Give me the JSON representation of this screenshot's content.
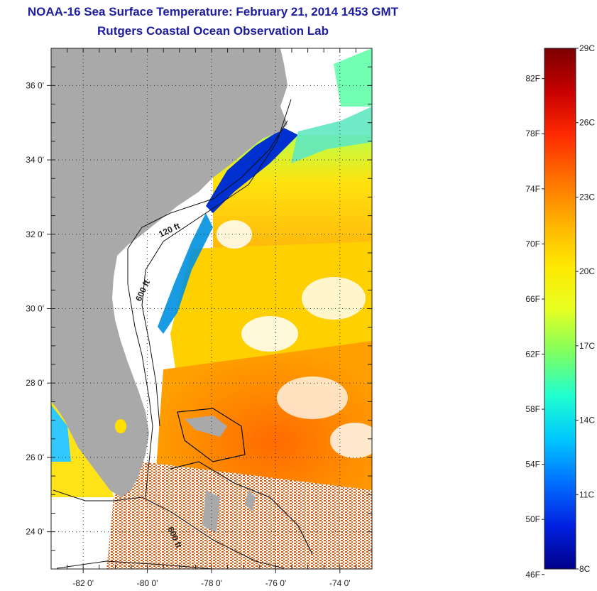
{
  "header": {
    "title": "NOAA-16 Sea Surface Temperature:  February 21, 2014 1453 GMT",
    "subtitle": "Rutgers Coastal Ocean Observation Lab"
  },
  "map": {
    "lon_range": [
      -83,
      -73
    ],
    "lat_range": [
      23,
      37
    ],
    "lon_ticks": [
      {
        "value": -82,
        "label": "-82 0'"
      },
      {
        "value": -80,
        "label": "-80 0'"
      },
      {
        "value": -78,
        "label": "-78 0'"
      },
      {
        "value": -76,
        "label": "-76 0'"
      },
      {
        "value": -74,
        "label": "-74 0'"
      }
    ],
    "lat_ticks": [
      {
        "value": 36,
        "label": "36 0'"
      },
      {
        "value": 34,
        "label": "34 0'"
      },
      {
        "value": 32,
        "label": "32 0'"
      },
      {
        "value": 30,
        "label": "30 0'"
      },
      {
        "value": 28,
        "label": "28 0'"
      },
      {
        "value": 26,
        "label": "26 0'"
      },
      {
        "value": 24,
        "label": "24 0'"
      }
    ],
    "contour_labels": [
      "120 ft",
      "600 ft",
      "600 ft"
    ],
    "land_color": "#a9a9a9",
    "cloud_color": "#ffffff"
  },
  "colorbar": {
    "range_c": [
      8,
      29
    ],
    "fahrenheit_labels": [
      "82F",
      "78F",
      "74F",
      "70F",
      "66F",
      "62F",
      "58F",
      "54F",
      "50F",
      "46F"
    ],
    "celsius_labels": [
      "29C",
      "26C",
      "23C",
      "20C",
      "17C",
      "14C",
      "11C",
      "8C"
    ],
    "gradient_colors": [
      "#7a0000",
      "#c80000",
      "#ff2a00",
      "#ff7000",
      "#ffb000",
      "#ffe800",
      "#e8ff20",
      "#80ff60",
      "#20ffd0",
      "#00c8ff",
      "#0070ff",
      "#0020e0",
      "#00008a"
    ]
  }
}
